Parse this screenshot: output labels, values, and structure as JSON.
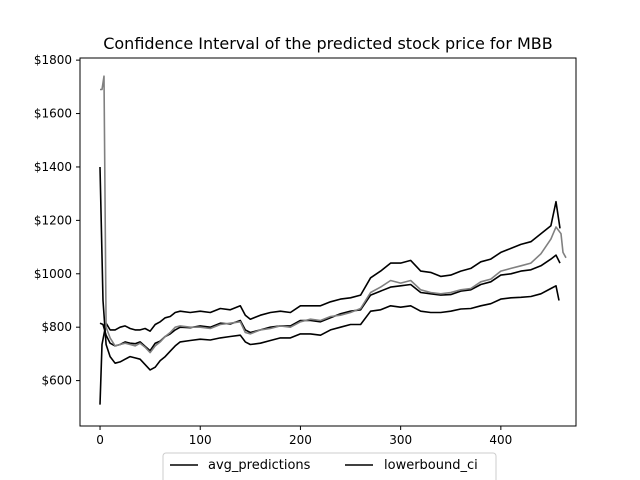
{
  "chart_data": {
    "type": "line",
    "title": "Confidence Interval of the predicted stock price for MBB",
    "xlabel": "",
    "ylabel": "",
    "xlim": [
      -20,
      475
    ],
    "ylim": [
      430,
      1808
    ],
    "x_ticks": [
      0,
      100,
      200,
      300,
      400
    ],
    "y_ticks": [
      600,
      800,
      1000,
      1200,
      1400,
      1600,
      1800
    ],
    "y_tick_prefix": "$",
    "grid": false,
    "legend": {
      "position": "lower center (below axes, partially clipped)",
      "visible_entries": [
        "avg_predictions",
        "lowerbound_ci"
      ]
    },
    "series": [
      {
        "name": "avg_predictions",
        "color": "#000000",
        "points": [
          [
            0,
            815
          ],
          [
            3,
            810
          ],
          [
            6,
            770
          ],
          [
            10,
            740
          ],
          [
            15,
            730
          ],
          [
            20,
            735
          ],
          [
            25,
            745
          ],
          [
            30,
            740
          ],
          [
            35,
            738
          ],
          [
            40,
            745
          ],
          [
            45,
            728
          ],
          [
            50,
            712
          ],
          [
            55,
            740
          ],
          [
            60,
            748
          ],
          [
            65,
            765
          ],
          [
            70,
            775
          ],
          [
            75,
            790
          ],
          [
            80,
            800
          ],
          [
            90,
            798
          ],
          [
            100,
            805
          ],
          [
            110,
            800
          ],
          [
            120,
            815
          ],
          [
            130,
            812
          ],
          [
            140,
            825
          ],
          [
            145,
            790
          ],
          [
            150,
            780
          ],
          [
            160,
            790
          ],
          [
            170,
            800
          ],
          [
            180,
            805
          ],
          [
            190,
            805
          ],
          [
            200,
            825
          ],
          [
            210,
            825
          ],
          [
            220,
            820
          ],
          [
            230,
            835
          ],
          [
            240,
            850
          ],
          [
            250,
            860
          ],
          [
            260,
            865
          ],
          [
            270,
            920
          ],
          [
            280,
            935
          ],
          [
            290,
            950
          ],
          [
            300,
            955
          ],
          [
            310,
            960
          ],
          [
            320,
            930
          ],
          [
            330,
            925
          ],
          [
            340,
            920
          ],
          [
            350,
            922
          ],
          [
            360,
            935
          ],
          [
            370,
            940
          ],
          [
            380,
            960
          ],
          [
            390,
            970
          ],
          [
            400,
            995
          ],
          [
            410,
            1000
          ],
          [
            420,
            1010
          ],
          [
            430,
            1015
          ],
          [
            440,
            1030
          ],
          [
            450,
            1055
          ],
          [
            455,
            1070
          ],
          [
            459,
            1040
          ]
        ]
      },
      {
        "name": "lowerbound_ci",
        "color": "#000000",
        "points": [
          [
            0,
            1400
          ],
          [
            3,
            900
          ],
          [
            6,
            735
          ],
          [
            10,
            690
          ],
          [
            15,
            665
          ],
          [
            20,
            670
          ],
          [
            25,
            680
          ],
          [
            30,
            690
          ],
          [
            35,
            685
          ],
          [
            40,
            680
          ],
          [
            45,
            660
          ],
          [
            50,
            640
          ],
          [
            55,
            650
          ],
          [
            60,
            675
          ],
          [
            65,
            690
          ],
          [
            70,
            710
          ],
          [
            75,
            730
          ],
          [
            80,
            745
          ],
          [
            90,
            750
          ],
          [
            100,
            755
          ],
          [
            110,
            752
          ],
          [
            120,
            760
          ],
          [
            130,
            765
          ],
          [
            140,
            770
          ],
          [
            145,
            745
          ],
          [
            150,
            735
          ],
          [
            160,
            740
          ],
          [
            170,
            750
          ],
          [
            180,
            760
          ],
          [
            190,
            760
          ],
          [
            200,
            775
          ],
          [
            210,
            775
          ],
          [
            220,
            770
          ],
          [
            230,
            790
          ],
          [
            240,
            800
          ],
          [
            250,
            810
          ],
          [
            260,
            810
          ],
          [
            270,
            860
          ],
          [
            280,
            865
          ],
          [
            290,
            880
          ],
          [
            300,
            875
          ],
          [
            310,
            880
          ],
          [
            320,
            860
          ],
          [
            330,
            855
          ],
          [
            340,
            855
          ],
          [
            350,
            860
          ],
          [
            360,
            868
          ],
          [
            370,
            870
          ],
          [
            380,
            880
          ],
          [
            390,
            888
          ],
          [
            400,
            905
          ],
          [
            410,
            910
          ],
          [
            420,
            912
          ],
          [
            430,
            915
          ],
          [
            440,
            925
          ],
          [
            450,
            945
          ],
          [
            455,
            955
          ],
          [
            458,
            900
          ]
        ]
      },
      {
        "name": "",
        "color": "#000000",
        "points": [
          [
            0,
            510
          ],
          [
            2,
            735
          ],
          [
            6,
            815
          ],
          [
            10,
            790
          ],
          [
            15,
            790
          ],
          [
            20,
            800
          ],
          [
            25,
            805
          ],
          [
            30,
            795
          ],
          [
            35,
            790
          ],
          [
            40,
            790
          ],
          [
            45,
            795
          ],
          [
            50,
            785
          ],
          [
            55,
            810
          ],
          [
            60,
            820
          ],
          [
            65,
            835
          ],
          [
            70,
            840
          ],
          [
            75,
            855
          ],
          [
            80,
            860
          ],
          [
            90,
            855
          ],
          [
            100,
            860
          ],
          [
            110,
            855
          ],
          [
            120,
            870
          ],
          [
            130,
            865
          ],
          [
            140,
            880
          ],
          [
            145,
            845
          ],
          [
            150,
            830
          ],
          [
            160,
            845
          ],
          [
            170,
            855
          ],
          [
            180,
            860
          ],
          [
            190,
            855
          ],
          [
            200,
            880
          ],
          [
            210,
            880
          ],
          [
            220,
            880
          ],
          [
            230,
            895
          ],
          [
            240,
            905
          ],
          [
            250,
            910
          ],
          [
            260,
            920
          ],
          [
            270,
            985
          ],
          [
            280,
            1010
          ],
          [
            290,
            1040
          ],
          [
            300,
            1040
          ],
          [
            310,
            1050
          ],
          [
            320,
            1010
          ],
          [
            330,
            1005
          ],
          [
            340,
            990
          ],
          [
            350,
            995
          ],
          [
            360,
            1010
          ],
          [
            370,
            1020
          ],
          [
            380,
            1045
          ],
          [
            390,
            1055
          ],
          [
            400,
            1080
          ],
          [
            410,
            1095
          ],
          [
            420,
            1110
          ],
          [
            430,
            1120
          ],
          [
            440,
            1150
          ],
          [
            450,
            1180
          ],
          [
            455,
            1270
          ],
          [
            459,
            1170
          ]
        ]
      },
      {
        "name": "",
        "color": "#808080",
        "points": [
          [
            0,
            1690
          ],
          [
            2,
            1690
          ],
          [
            4,
            1740
          ],
          [
            6,
            800
          ],
          [
            10,
            760
          ],
          [
            15,
            730
          ],
          [
            20,
            735
          ],
          [
            25,
            740
          ],
          [
            30,
            735
          ],
          [
            35,
            730
          ],
          [
            40,
            740
          ],
          [
            45,
            725
          ],
          [
            50,
            705
          ],
          [
            55,
            730
          ],
          [
            60,
            745
          ],
          [
            65,
            765
          ],
          [
            70,
            780
          ],
          [
            75,
            800
          ],
          [
            80,
            805
          ],
          [
            90,
            800
          ],
          [
            100,
            800
          ],
          [
            110,
            795
          ],
          [
            120,
            810
          ],
          [
            130,
            815
          ],
          [
            140,
            820
          ],
          [
            145,
            780
          ],
          [
            150,
            775
          ],
          [
            160,
            790
          ],
          [
            170,
            795
          ],
          [
            180,
            805
          ],
          [
            190,
            800
          ],
          [
            200,
            820
          ],
          [
            210,
            830
          ],
          [
            220,
            825
          ],
          [
            230,
            840
          ],
          [
            240,
            845
          ],
          [
            250,
            855
          ],
          [
            260,
            870
          ],
          [
            270,
            930
          ],
          [
            280,
            950
          ],
          [
            290,
            975
          ],
          [
            300,
            965
          ],
          [
            310,
            975
          ],
          [
            320,
            940
          ],
          [
            330,
            930
          ],
          [
            340,
            925
          ],
          [
            350,
            930
          ],
          [
            360,
            940
          ],
          [
            370,
            945
          ],
          [
            380,
            970
          ],
          [
            390,
            980
          ],
          [
            400,
            1010
          ],
          [
            410,
            1020
          ],
          [
            420,
            1030
          ],
          [
            430,
            1040
          ],
          [
            440,
            1075
          ],
          [
            450,
            1130
          ],
          [
            455,
            1175
          ],
          [
            460,
            1150
          ],
          [
            462,
            1080
          ],
          [
            465,
            1060
          ]
        ]
      }
    ]
  }
}
